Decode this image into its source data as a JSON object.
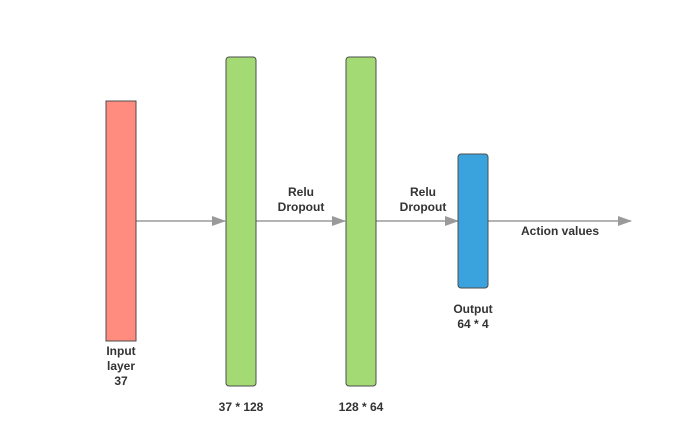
{
  "colors": {
    "input_layer": "#FF8C7F",
    "hidden_layer": "#A4DA73",
    "output_layer": "#3AA2DC",
    "arrow": "#9A9A9A",
    "layer_border": "#4d4d4d",
    "text": "#333333"
  },
  "layers": {
    "input": {
      "line1": "Input",
      "line2": "layer",
      "line3": "37"
    },
    "hidden1": {
      "label": "37 * 128"
    },
    "hidden2": {
      "label": "128 * 64"
    },
    "output": {
      "line1": "Output",
      "line2": "64 * 4"
    }
  },
  "connections": {
    "first": {
      "line1": "Relu",
      "line2": "Dropout"
    },
    "second": {
      "line1": "Relu",
      "line2": "Dropout"
    },
    "result": {
      "label": "Action values"
    }
  }
}
